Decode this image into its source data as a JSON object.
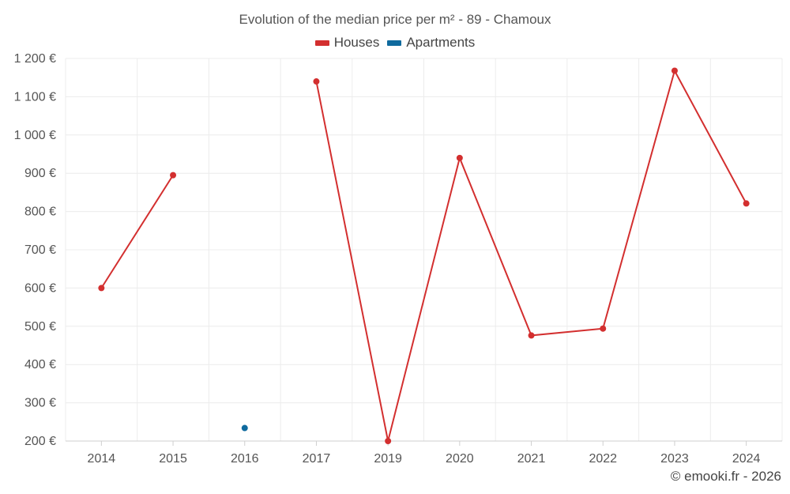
{
  "chart_data": {
    "type": "line",
    "title": "Evolution of the median price per m² - 89 - Chamoux",
    "categories": [
      "2014",
      "2015",
      "2016",
      "2017",
      "2019",
      "2020",
      "2021",
      "2022",
      "2023",
      "2024"
    ],
    "y_tick_labels": [
      "200 €",
      "300 €",
      "400 €",
      "500 €",
      "600 €",
      "700 €",
      "800 €",
      "900 €",
      "1 000 €",
      "1 100 €",
      "1 200 €"
    ],
    "y_ticks": [
      200,
      300,
      400,
      500,
      600,
      700,
      800,
      900,
      1000,
      1100,
      1200
    ],
    "ylim": [
      200,
      1200
    ],
    "xlabel": "",
    "ylabel": "",
    "grid": true,
    "legend_position": "top-center",
    "series": [
      {
        "name": "Houses",
        "color": "#d32f2f",
        "values": [
          600,
          895,
          null,
          1140,
          200,
          940,
          476,
          494,
          1168,
          821
        ]
      },
      {
        "name": "Apartments",
        "color": "#0f6a9e",
        "values": [
          null,
          null,
          234,
          null,
          null,
          null,
          null,
          null,
          null,
          null
        ]
      }
    ]
  },
  "credit": "© emooki.fr - 2026"
}
